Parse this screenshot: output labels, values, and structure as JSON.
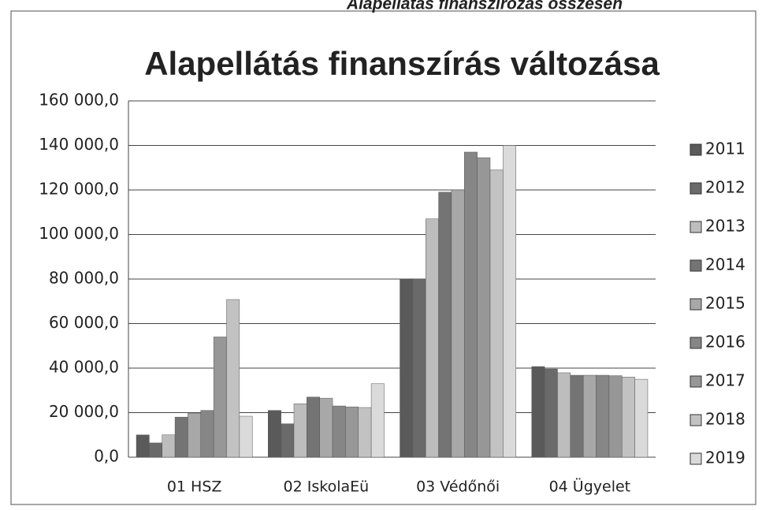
{
  "chart_data": {
    "type": "bar",
    "header": "Alapellátás finanszírozás összesen",
    "title": "Alapellátás finanszírás változása",
    "categories": [
      "01 HSZ",
      "02 IskolaEü",
      "03 Védőnői",
      "04 Ügyelet"
    ],
    "series": [
      {
        "name": "2011",
        "color": "#5a5a5a",
        "values": [
          10000,
          21000,
          80000,
          40700
        ]
      },
      {
        "name": "2012",
        "color": "#6a6a6a",
        "values": [
          6400,
          15000,
          80000,
          39600
        ]
      },
      {
        "name": "2013",
        "color": "#bdbdbd",
        "values": [
          10000,
          24000,
          107000,
          37900
        ]
      },
      {
        "name": "2014",
        "color": "#747474",
        "values": [
          18000,
          27000,
          119000,
          36800
        ]
      },
      {
        "name": "2015",
        "color": "#a8a8a8",
        "values": [
          19800,
          26500,
          120000,
          36800
        ]
      },
      {
        "name": "2016",
        "color": "#868686",
        "values": [
          21000,
          23000,
          137000,
          36800
        ]
      },
      {
        "name": "2017",
        "color": "#979797",
        "values": [
          54000,
          22600,
          134500,
          36600
        ]
      },
      {
        "name": "2018",
        "color": "#c2c2c2",
        "values": [
          70800,
          22300,
          129000,
          36000
        ]
      },
      {
        "name": "2019",
        "color": "#dadada",
        "values": [
          18400,
          33000,
          140000,
          35000
        ]
      }
    ],
    "ylim": [
      0,
      160000
    ],
    "yticks": [
      {
        "value": 0,
        "label": "0,0"
      },
      {
        "value": 20000,
        "label": "20 000,0"
      },
      {
        "value": 40000,
        "label": "40 000,0"
      },
      {
        "value": 60000,
        "label": "60 000,0"
      },
      {
        "value": 80000,
        "label": "80 000,0"
      },
      {
        "value": 100000,
        "label": "100 000,0"
      },
      {
        "value": 120000,
        "label": "120 000,0"
      },
      {
        "value": 140000,
        "label": "140 000,0"
      },
      {
        "value": 160000,
        "label": "160 000,0"
      }
    ],
    "grid": true,
    "legend": "right"
  }
}
